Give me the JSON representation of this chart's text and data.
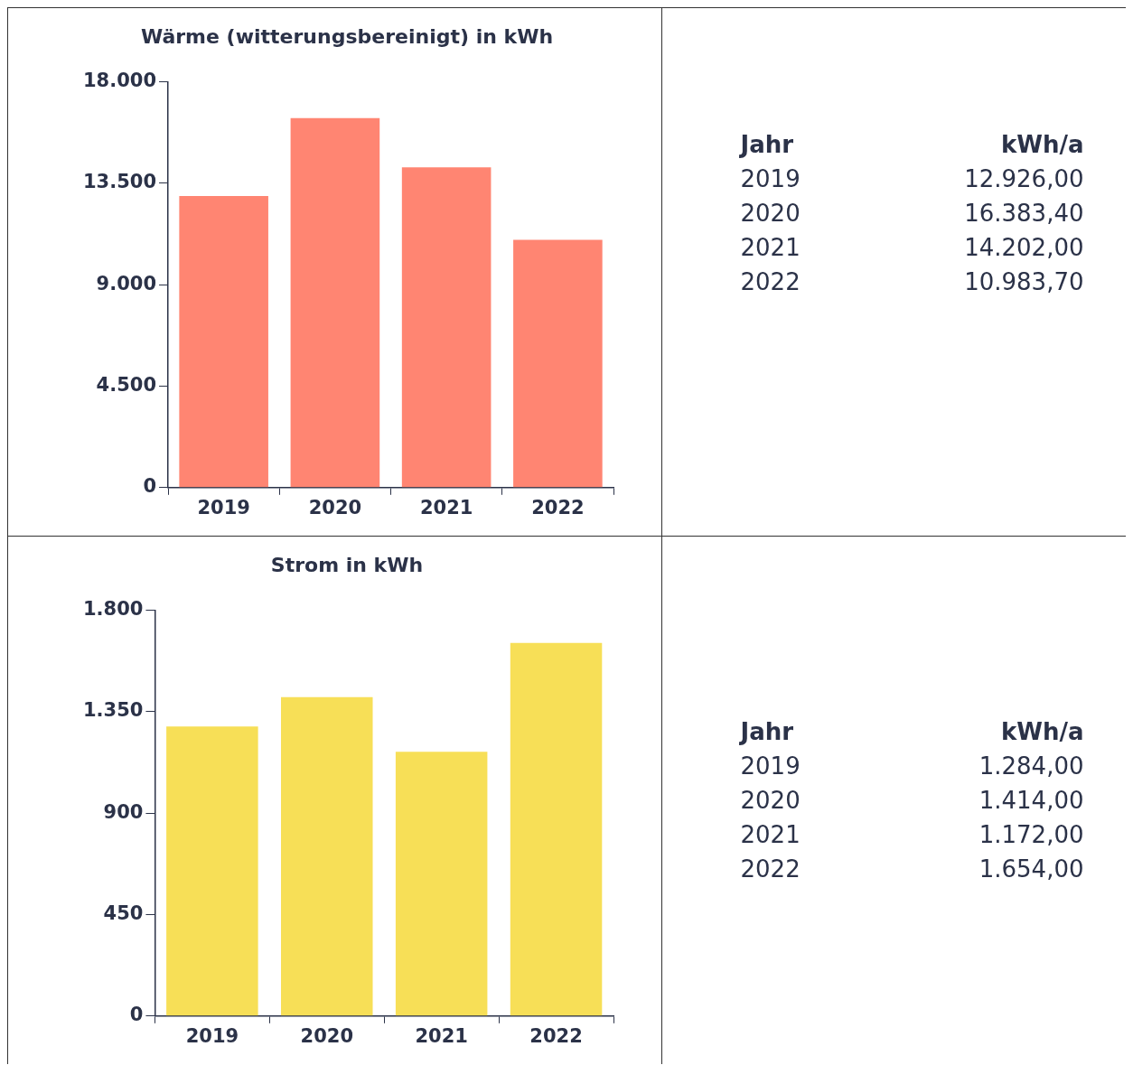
{
  "chart_data": [
    {
      "type": "bar",
      "title": "Wärme (witterungsbereinigt) in kWh",
      "categories": [
        "2019",
        "2020",
        "2021",
        "2022"
      ],
      "values": [
        12926,
        16383.4,
        14202,
        10983.7
      ],
      "color": "#ff8572",
      "ylim": [
        0,
        18000
      ],
      "yticks": [
        0,
        {
          "value": 4500,
          "label": "4.500"
        },
        {
          "value": 9000,
          "label": "9.000"
        },
        {
          "value": 13500,
          "label": "13.500"
        },
        {
          "value": 18000,
          "label": "18.000"
        }
      ],
      "annotations": [
        "Jahr",
        "kWh/a",
        "12.926,00",
        "16.383,40",
        "14.202,00",
        "10.983,70"
      ]
    },
    {
      "type": "bar",
      "title": "Strom in kWh",
      "categories": [
        "2019",
        "2020",
        "2021",
        "2022"
      ],
      "values": [
        1284,
        1414,
        1172,
        1654
      ],
      "color": "#f7df57",
      "ylim": [
        0,
        1800
      ],
      "yticks": [
        0,
        450,
        900,
        {
          "value": 1350,
          "label": "1.350"
        },
        {
          "value": 1800,
          "label": "1.800"
        }
      ],
      "annotations": [
        "Jahr",
        "kWh/a",
        "1.284,00",
        "1.414,00",
        "1.172,00",
        "1.654,00"
      ]
    }
  ]
}
